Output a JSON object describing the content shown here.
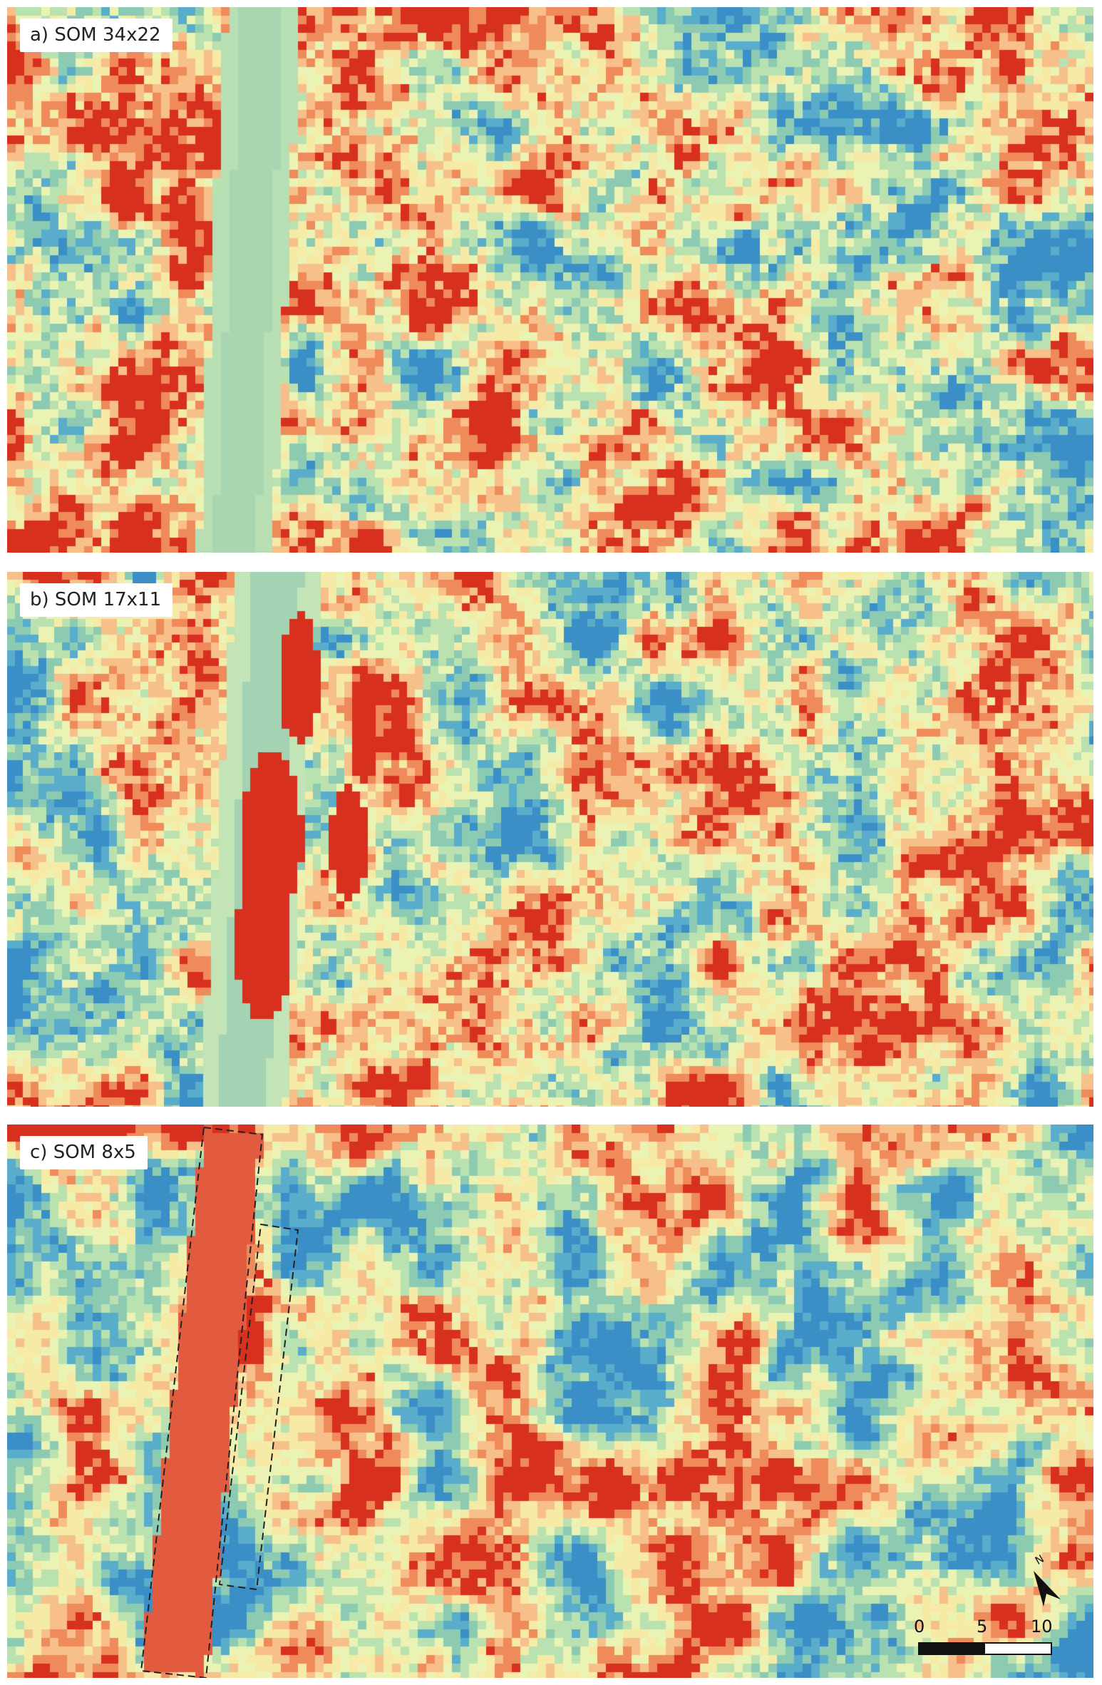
{
  "panels": [
    {
      "id": "a",
      "label": "a) SOM 34x22",
      "grid_cols": 34,
      "grid_rows": 22
    },
    {
      "id": "b",
      "label": "b) SOM 17x11",
      "grid_cols": 17,
      "grid_rows": 11
    },
    {
      "id": "c",
      "label": "c) SOM 8x5",
      "grid_cols": 8,
      "grid_rows": 5
    }
  ],
  "scale_bar": {
    "ticks": [
      "0",
      "5",
      "10 m"
    ]
  },
  "north_arrow": {
    "letter": "N"
  },
  "palette": {
    "red": "#d7301f",
    "orange": "#ef8a5a",
    "light_orange": "#f7bf8a",
    "cream": "#f5eaa6",
    "pale_yellow": "#eaf3b4",
    "light_green": "#b9e2b0",
    "mint": "#8ccbb2",
    "teal": "#5aaccb",
    "blue": "#3a8fc7"
  }
}
